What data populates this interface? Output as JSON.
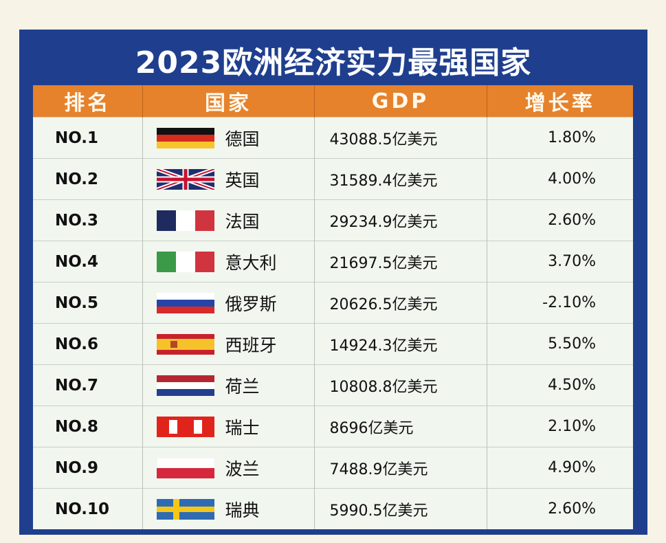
{
  "title": "2023欧洲经济实力最强国家",
  "chart_data": {
    "type": "table",
    "title": "2023欧洲经济实力最强国家",
    "columns": [
      "排名",
      "国家",
      "GDP",
      "增长率"
    ],
    "rows": [
      {
        "rank": "NO.1",
        "country": "德国",
        "flag": "germany",
        "gdp": "43088.5亿美元",
        "growth": "1.80%"
      },
      {
        "rank": "NO.2",
        "country": "英国",
        "flag": "uk",
        "gdp": "31589.4亿美元",
        "growth": "4.00%"
      },
      {
        "rank": "NO.3",
        "country": "法国",
        "flag": "france",
        "gdp": "29234.9亿美元",
        "growth": "2.60%"
      },
      {
        "rank": "NO.4",
        "country": "意大利",
        "flag": "italy",
        "gdp": "21697.5亿美元",
        "growth": "3.70%"
      },
      {
        "rank": "NO.5",
        "country": "俄罗斯",
        "flag": "russia",
        "gdp": "20626.5亿美元",
        "growth": "-2.10%"
      },
      {
        "rank": "NO.6",
        "country": "西班牙",
        "flag": "spain",
        "gdp": "14924.3亿美元",
        "growth": "5.50%"
      },
      {
        "rank": "NO.7",
        "country": "荷兰",
        "flag": "netherlands",
        "gdp": "10808.8亿美元",
        "growth": "4.50%"
      },
      {
        "rank": "NO.8",
        "country": "瑞士",
        "flag": "switzerland",
        "gdp": "8696亿美元",
        "growth": "2.10%"
      },
      {
        "rank": "NO.9",
        "country": "波兰",
        "flag": "poland",
        "gdp": "7488.9亿美元",
        "growth": "4.90%"
      },
      {
        "rank": "NO.10",
        "country": "瑞典",
        "flag": "sweden",
        "gdp": "5990.5亿美元",
        "growth": "2.60%"
      }
    ]
  },
  "colors": {
    "frame": "#1f3f8e",
    "header": "#e6822b",
    "row": "#f1f6ef",
    "background": "#f7f3e6"
  }
}
